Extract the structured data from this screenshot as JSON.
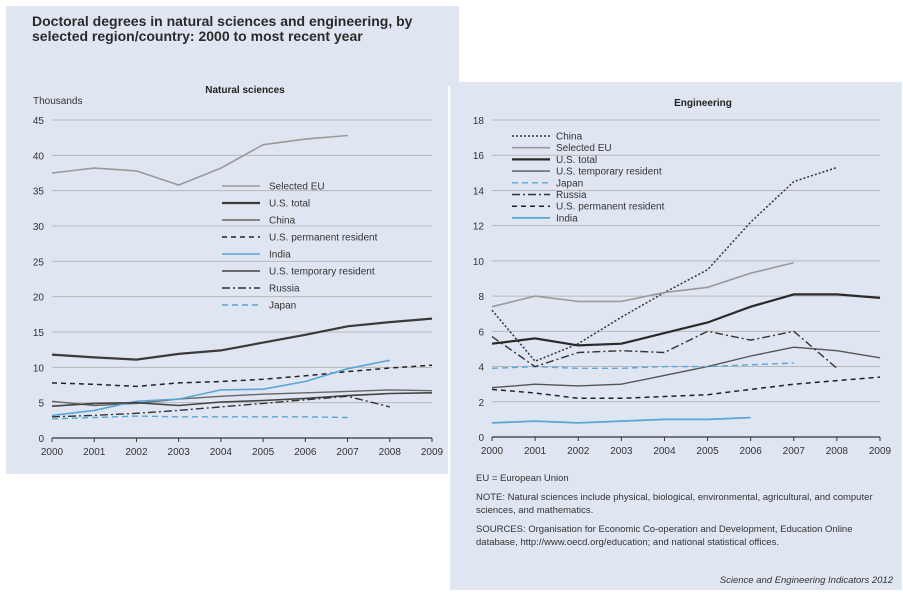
{
  "figure": {
    "title": "Doctoral degrees in natural sciences and engineering, by selected region/country: 2000 to most recent year",
    "units": "Thousands",
    "eu_note": "EU = European Union",
    "note": "NOTE: Natural sciences include physical, biological, environmental, agricultural, and computer sciences, and mathematics.",
    "sources": "SOURCES: Organisation for Economic Co-operation and Development, Education Online database, http://www.oecd.org/education; and national statistical offices.",
    "credit": "Science and Engineering Indicators 2012"
  },
  "chart_data": [
    {
      "type": "line",
      "title": "Natural sciences",
      "ylabel": "Thousands",
      "ylim": [
        0,
        45
      ],
      "yticks": [
        0,
        5,
        10,
        15,
        20,
        25,
        30,
        35,
        40,
        45
      ],
      "x": [
        2000,
        2001,
        2002,
        2003,
        2004,
        2005,
        2006,
        2007,
        2008,
        2009
      ],
      "legend_position": "right",
      "series": [
        {
          "name": "Selected EU",
          "color": "#9a9a9a",
          "dash": "",
          "width": 1.6,
          "values": [
            37.5,
            38.2,
            37.8,
            35.8,
            38.2,
            41.5,
            42.3,
            42.8,
            null,
            null
          ]
        },
        {
          "name": "U.S. total",
          "color": "#3a3a3a",
          "dash": "",
          "width": 2.2,
          "values": [
            11.8,
            11.4,
            11.1,
            11.9,
            12.4,
            13.5,
            14.6,
            15.8,
            16.4,
            16.9
          ]
        },
        {
          "name": "China",
          "color": "#666666",
          "dash": "",
          "width": 1.4,
          "values": [
            5.2,
            4.6,
            4.9,
            5.5,
            5.9,
            6.2,
            6.4,
            6.6,
            6.8,
            6.7
          ]
        },
        {
          "name": "U.S. permanent resident",
          "color": "#222222",
          "dash": "5,4",
          "width": 1.5,
          "values": [
            7.8,
            7.6,
            7.3,
            7.8,
            8.0,
            8.3,
            8.8,
            9.4,
            9.9,
            10.3
          ]
        },
        {
          "name": "India",
          "color": "#5aa6d6",
          "dash": "",
          "width": 1.6,
          "values": [
            3.2,
            3.9,
            5.2,
            5.5,
            6.8,
            6.9,
            8.0,
            9.8,
            11.0,
            null
          ]
        },
        {
          "name": "U.S. temporary resident",
          "color": "#444444",
          "dash": "",
          "width": 1.6,
          "values": [
            4.5,
            4.9,
            5.0,
            4.6,
            5.1,
            5.3,
            5.6,
            6.0,
            6.3,
            6.4
          ]
        },
        {
          "name": "Russia",
          "color": "#333333",
          "dash": "8,3,2,3",
          "width": 1.4,
          "values": [
            3.0,
            3.2,
            3.5,
            3.9,
            4.4,
            4.9,
            5.4,
            5.9,
            4.4,
            null
          ]
        },
        {
          "name": "Japan",
          "color": "#5aa6d6",
          "dash": "6,4",
          "width": 1.4,
          "values": [
            2.7,
            2.9,
            3.1,
            3.0,
            3.0,
            3.0,
            3.0,
            2.9,
            null,
            null
          ]
        }
      ]
    },
    {
      "type": "line",
      "title": "Engineering",
      "ylim": [
        0,
        18
      ],
      "yticks": [
        0,
        2,
        4,
        6,
        8,
        10,
        12,
        14,
        16,
        18
      ],
      "x": [
        2000,
        2001,
        2002,
        2003,
        2004,
        2005,
        2006,
        2007,
        2008,
        2009
      ],
      "legend_position": "top-left",
      "series": [
        {
          "name": "China",
          "color": "#333333",
          "dash": "2,2",
          "width": 1.5,
          "values": [
            7.2,
            4.3,
            5.3,
            6.8,
            8.2,
            9.5,
            12.2,
            14.5,
            15.3,
            null
          ]
        },
        {
          "name": "Selected EU",
          "color": "#9a9a9a",
          "dash": "",
          "width": 1.6,
          "values": [
            7.4,
            8.0,
            7.7,
            7.7,
            8.2,
            8.5,
            9.3,
            9.9,
            null,
            null
          ]
        },
        {
          "name": "U.S. total",
          "color": "#2a2a2a",
          "dash": "",
          "width": 2.2,
          "values": [
            5.3,
            5.6,
            5.2,
            5.3,
            5.9,
            6.5,
            7.4,
            8.1,
            8.1,
            7.9
          ]
        },
        {
          "name": "U.S. temporary resident",
          "color": "#555555",
          "dash": "",
          "width": 1.4,
          "values": [
            2.8,
            3.0,
            2.9,
            3.0,
            3.5,
            4.0,
            4.6,
            5.1,
            4.9,
            4.5
          ]
        },
        {
          "name": "Japan",
          "color": "#5aa6d6",
          "dash": "6,4",
          "width": 1.4,
          "values": [
            3.9,
            4.0,
            3.9,
            3.9,
            4.0,
            4.0,
            4.1,
            4.2,
            null,
            null
          ]
        },
        {
          "name": "Russia",
          "color": "#333333",
          "dash": "8,3,2,3",
          "width": 1.4,
          "values": [
            5.7,
            4.0,
            4.8,
            4.9,
            4.8,
            6.0,
            5.5,
            6.0,
            3.9,
            null
          ]
        },
        {
          "name": "U.S. permanent resident",
          "color": "#222222",
          "dash": "5,4",
          "width": 1.5,
          "values": [
            2.7,
            2.5,
            2.2,
            2.2,
            2.3,
            2.4,
            2.7,
            3.0,
            3.2,
            3.4
          ]
        },
        {
          "name": "India",
          "color": "#5aa6d6",
          "dash": "",
          "width": 1.8,
          "values": [
            0.8,
            0.9,
            0.8,
            0.9,
            1.0,
            1.0,
            1.1,
            null,
            null,
            null
          ]
        }
      ]
    }
  ]
}
